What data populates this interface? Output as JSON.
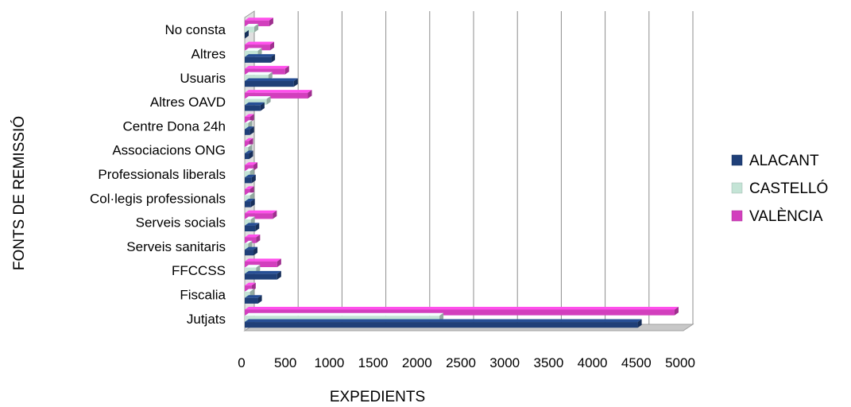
{
  "chart_data": {
    "type": "bar",
    "orientation": "horizontal",
    "three_d": true,
    "title": "",
    "xlabel": "EXPEDIENTS",
    "ylabel": "FONTS DE REMISSIÓ",
    "xlim": [
      0,
      5000
    ],
    "xticks": [
      0,
      500,
      1000,
      1500,
      2000,
      2500,
      3000,
      3500,
      4000,
      4500,
      5000
    ],
    "grid": true,
    "legend_position": "right",
    "categories": [
      "No consta",
      "Altres",
      "Usuaris",
      "Altres OAVD",
      "Centre Dona 24h",
      "Associacions ONG",
      "Professionals liberals",
      "Col·legis professionals",
      "Serveis socials",
      "Serveis sanitaris",
      "FFCCSS",
      "Fiscalia",
      "Jutjats"
    ],
    "series": [
      {
        "name": "ALACANT",
        "color": "#1f3f78",
        "values": [
          0,
          300,
          560,
          180,
          60,
          50,
          80,
          70,
          120,
          100,
          370,
          150,
          4480
        ]
      },
      {
        "name": "CASTELLÓ",
        "color": "#c4e4d6",
        "values": [
          110,
          150,
          270,
          250,
          40,
          40,
          60,
          60,
          70,
          40,
          130,
          60,
          2220
        ]
      },
      {
        "name": "VALÈNCIA",
        "color": "#d23fbd",
        "values": [
          280,
          290,
          460,
          720,
          60,
          50,
          100,
          60,
          320,
          130,
          370,
          80,
          4900
        ]
      }
    ]
  }
}
